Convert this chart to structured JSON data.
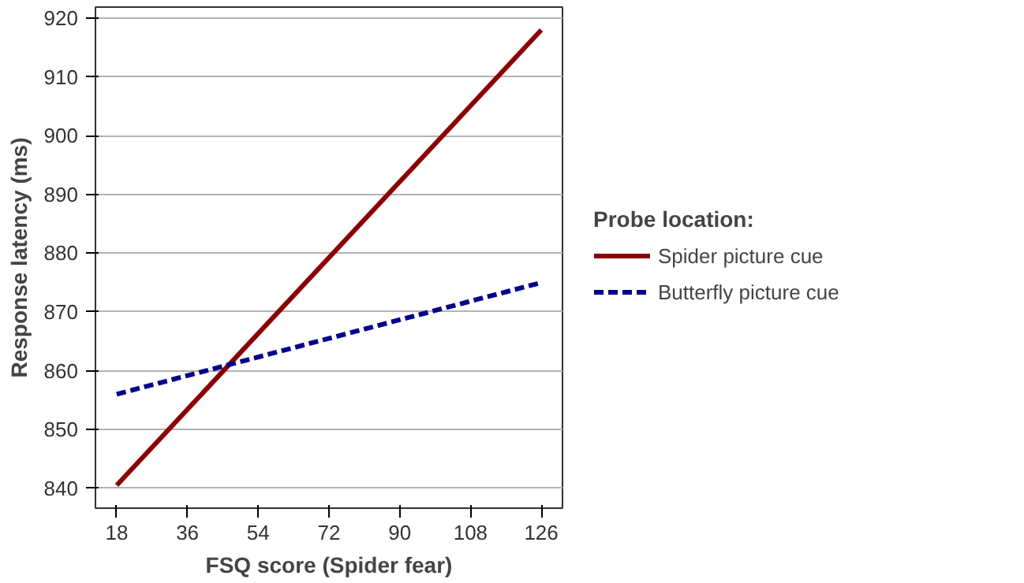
{
  "chart_data": {
    "type": "line",
    "xlabel": "FSQ score (Spider fear)",
    "ylabel": "Response latency (ms)",
    "legend_title": "Probe location:",
    "x": [
      18,
      126
    ],
    "series": [
      {
        "name": "Spider picture cue",
        "color": "#8b0000",
        "values": [
          840.5,
          918
        ],
        "line_style": "solid"
      },
      {
        "name": "Butterfly picture cue",
        "color": "#00008b",
        "values": [
          856,
          875
        ],
        "line_style": "dashed"
      }
    ],
    "xlim": [
      12.6,
      131.4
    ],
    "ylim": [
      836.6,
      921.9
    ],
    "xticks": [
      18,
      36,
      54,
      72,
      90,
      108,
      126
    ],
    "yticks": [
      840,
      850,
      860,
      870,
      880,
      890,
      900,
      910,
      920
    ],
    "grid": "y",
    "legend": "right",
    "marker": "none"
  }
}
